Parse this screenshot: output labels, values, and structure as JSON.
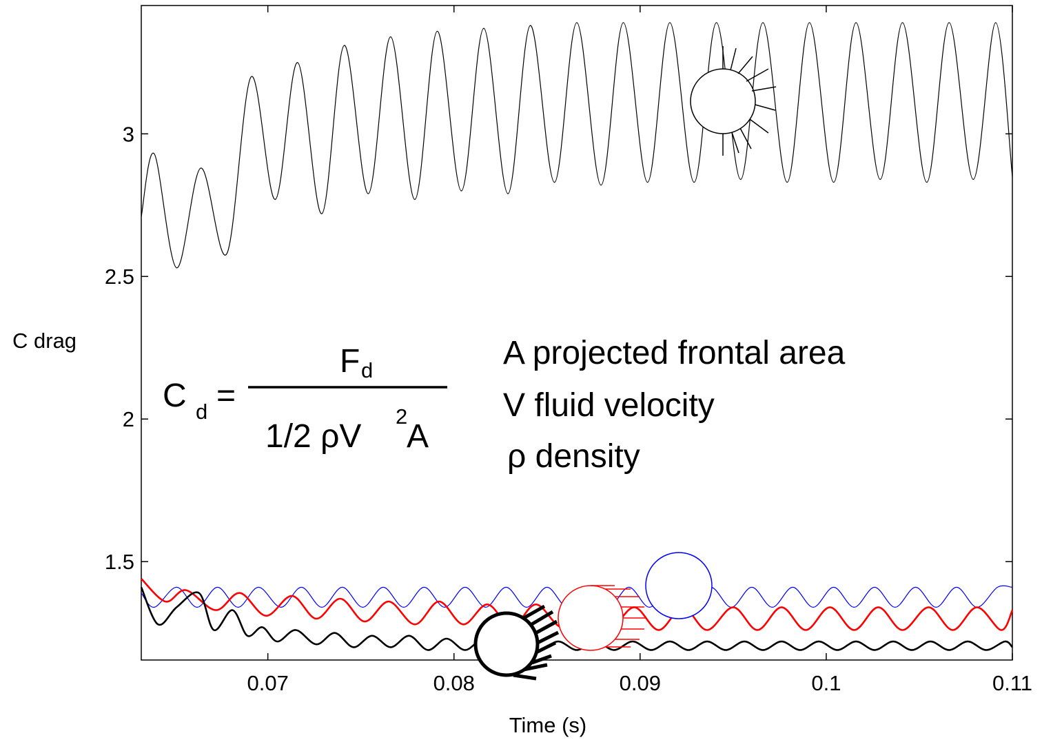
{
  "chart_data": {
    "type": "line",
    "xlabel": "Time (s)",
    "ylabel": "C drag",
    "xlim": [
      0.0632,
      0.11
    ],
    "ylim": [
      1.155,
      3.45
    ],
    "xticks": [
      0.07,
      0.08,
      0.09,
      0.1,
      0.11
    ],
    "xtick_labels": [
      "0.07",
      "0.08",
      "0.09",
      "0.1",
      "0.11"
    ],
    "yticks": [
      1.5,
      2,
      2.5,
      3
    ],
    "ytick_labels": [
      "1.5",
      "2",
      "2.5",
      "3"
    ],
    "grid": false,
    "series": [
      {
        "key": "hairy-top",
        "color": "#000000",
        "width": 1.2,
        "x": [
          0.0632,
          0.0639,
          0.0651,
          0.0664,
          0.0678,
          0.0691,
          0.0704,
          0.0716,
          0.0729,
          0.0741,
          0.0754,
          0.0766,
          0.0779,
          0.0791,
          0.0804,
          0.0816,
          0.0829,
          0.0841,
          0.0854,
          0.0866,
          0.0879,
          0.0891,
          0.0904,
          0.0916,
          0.0929,
          0.0941,
          0.0954,
          0.0966,
          0.0979,
          0.0991,
          0.1004,
          0.1016,
          0.1029,
          0.1041,
          0.1054,
          0.1066,
          0.1079,
          0.1091,
          0.11
        ],
        "y": [
          2.71,
          2.93,
          2.53,
          2.88,
          2.58,
          3.2,
          2.77,
          3.25,
          2.72,
          3.31,
          2.79,
          3.34,
          2.77,
          3.36,
          2.8,
          3.37,
          2.79,
          3.38,
          2.83,
          3.39,
          2.82,
          3.39,
          2.83,
          3.39,
          2.83,
          3.39,
          2.84,
          3.39,
          2.83,
          3.39,
          2.83,
          3.39,
          2.84,
          3.39,
          2.83,
          3.39,
          2.84,
          3.39,
          2.85
        ]
      },
      {
        "key": "blue",
        "color": "#0000ff",
        "width": 1.2,
        "x": [
          0.0632,
          0.0639,
          0.0651,
          0.0662,
          0.0673,
          0.0684,
          0.0695,
          0.0707,
          0.0718,
          0.0729,
          0.074,
          0.0751,
          0.0762,
          0.0773,
          0.0784,
          0.0795,
          0.0806,
          0.0817,
          0.0828,
          0.0839,
          0.085,
          0.0861,
          0.0872,
          0.0883,
          0.0894,
          0.0905,
          0.0916,
          0.0927,
          0.0938,
          0.0949,
          0.096,
          0.0971,
          0.0982,
          0.0993,
          0.1004,
          0.1015,
          0.1026,
          0.1037,
          0.1048,
          0.1059,
          0.107,
          0.1081,
          0.1092,
          0.11
        ],
        "y": [
          1.39,
          1.34,
          1.41,
          1.34,
          1.41,
          1.34,
          1.41,
          1.34,
          1.41,
          1.34,
          1.41,
          1.34,
          1.41,
          1.34,
          1.41,
          1.34,
          1.41,
          1.34,
          1.41,
          1.34,
          1.41,
          1.34,
          1.41,
          1.34,
          1.41,
          1.34,
          1.41,
          1.34,
          1.41,
          1.34,
          1.41,
          1.34,
          1.41,
          1.34,
          1.41,
          1.34,
          1.41,
          1.34,
          1.41,
          1.34,
          1.41,
          1.34,
          1.41,
          1.41
        ]
      },
      {
        "key": "red",
        "color": "#ff0000",
        "width": 2.6,
        "x": [
          0.0632,
          0.0645,
          0.0656,
          0.0672,
          0.0685,
          0.0699,
          0.0713,
          0.0726,
          0.0739,
          0.0752,
          0.0765,
          0.0779,
          0.0792,
          0.0805,
          0.0818,
          0.0831,
          0.0844,
          0.0858,
          0.0871,
          0.0884,
          0.0897,
          0.091,
          0.0923,
          0.0936,
          0.095,
          0.0963,
          0.0976,
          0.0989,
          0.1002,
          0.1015,
          0.1028,
          0.1041,
          0.1055,
          0.1068,
          0.1081,
          0.1094,
          0.11
        ],
        "y": [
          1.44,
          1.36,
          1.4,
          1.33,
          1.39,
          1.31,
          1.38,
          1.3,
          1.37,
          1.29,
          1.36,
          1.28,
          1.36,
          1.28,
          1.35,
          1.27,
          1.35,
          1.27,
          1.34,
          1.27,
          1.34,
          1.26,
          1.34,
          1.26,
          1.34,
          1.26,
          1.34,
          1.26,
          1.34,
          1.26,
          1.34,
          1.26,
          1.34,
          1.26,
          1.34,
          1.26,
          1.33
        ]
      },
      {
        "key": "black-bottom",
        "color": "#000000",
        "width": 2.6,
        "x": [
          0.0632,
          0.0641,
          0.0651,
          0.0663,
          0.0671,
          0.0681,
          0.0689,
          0.0697,
          0.0705,
          0.0715,
          0.0726,
          0.0736,
          0.0746,
          0.0756,
          0.0766,
          0.0776,
          0.0786,
          0.0796,
          0.0806,
          0.0816,
          0.0826,
          0.0836,
          0.0846,
          0.0856,
          0.0866,
          0.0876,
          0.0886,
          0.0896,
          0.0906,
          0.0916,
          0.0926,
          0.0936,
          0.0946,
          0.0956,
          0.0966,
          0.0976,
          0.0986,
          0.0996,
          0.1006,
          0.1016,
          0.1026,
          0.1036,
          0.1046,
          0.1056,
          0.1066,
          0.1076,
          0.1086,
          0.1096,
          0.11
        ],
        "y": [
          1.41,
          1.28,
          1.34,
          1.39,
          1.26,
          1.33,
          1.24,
          1.27,
          1.22,
          1.26,
          1.21,
          1.25,
          1.2,
          1.24,
          1.2,
          1.24,
          1.19,
          1.23,
          1.19,
          1.23,
          1.19,
          1.23,
          1.19,
          1.22,
          1.19,
          1.22,
          1.19,
          1.22,
          1.19,
          1.22,
          1.19,
          1.22,
          1.19,
          1.22,
          1.19,
          1.22,
          1.19,
          1.22,
          1.19,
          1.22,
          1.19,
          1.22,
          1.19,
          1.22,
          1.19,
          1.22,
          1.19,
          1.22,
          1.2
        ]
      }
    ]
  },
  "formula": {
    "lhs": "C",
    "lhs_sub": "d",
    "eq": "=",
    "numerator": "F",
    "numerator_sub": "d",
    "denominator_a": "1/2 ",
    "denominator_rho": "ρ",
    "denominator_v": "V",
    "denominator_exp": "2",
    "denominator_b": "A"
  },
  "legend_text": {
    "line1": "A projected frontal area",
    "line2": "V fluid velocity",
    "line3": "ρ density"
  },
  "colors": {
    "blue": "#0000ff",
    "red": "#ff0000",
    "black": "#000000"
  }
}
